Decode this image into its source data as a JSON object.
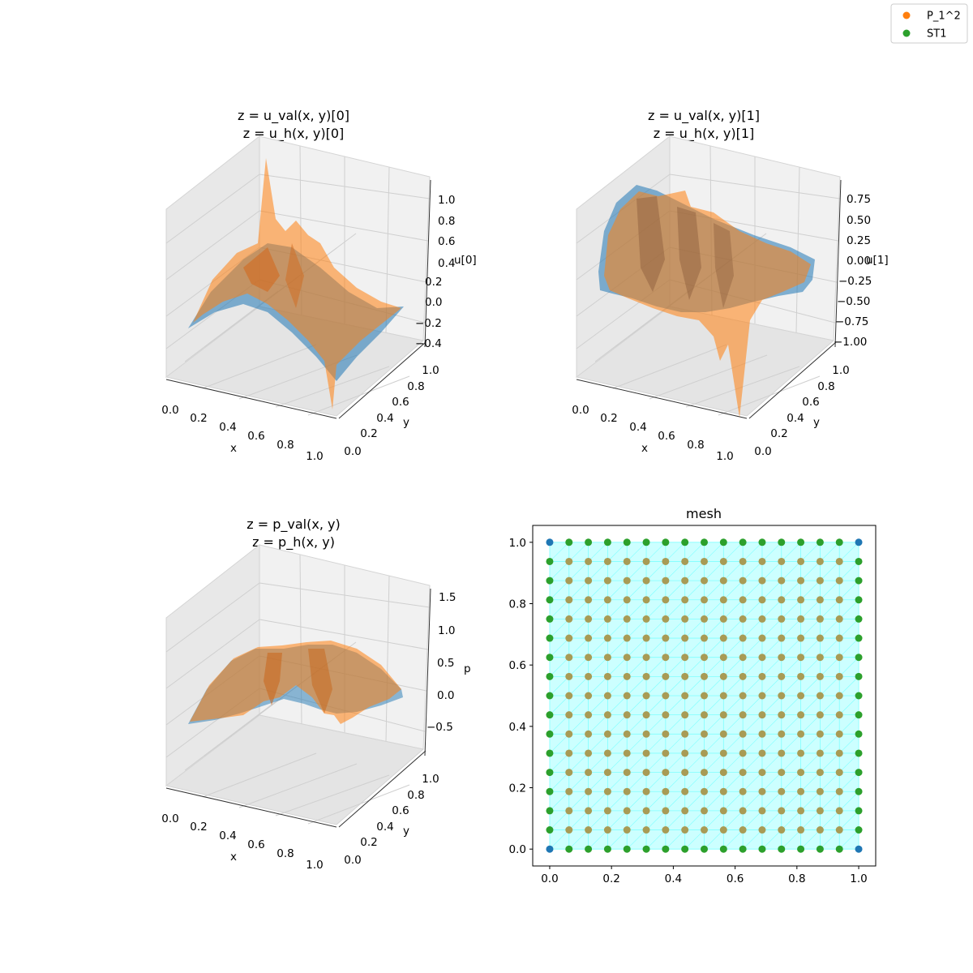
{
  "legend": {
    "placement": "top-right",
    "entries": [
      {
        "label": "P_1^2",
        "color": "#ff7f0e"
      },
      {
        "label": "ST1",
        "color": "#2ca02c"
      }
    ]
  },
  "colors": {
    "exact_surface": "#1f77b4",
    "discrete_surface": "#ff7f0e",
    "mesh_fill": "#ccffff",
    "mesh_lines": "#7fffff",
    "vertex_points": "#1f77b4",
    "p1_points": "#ff7f0e",
    "st1_points": "#2ca02c"
  },
  "chart_data": [
    {
      "type": "surface3d",
      "title_lines": [
        "z = u_val(x, y)[0]",
        "z = u_h(x, y)[0]"
      ],
      "xlabel": "x",
      "ylabel": "y",
      "zlabel": "u[0]",
      "x_ticks": [
        "0.0",
        "0.2",
        "0.4",
        "0.6",
        "0.8",
        "1.0"
      ],
      "y_ticks": [
        "0.0",
        "0.2",
        "0.4",
        "0.6",
        "0.8",
        "1.0"
      ],
      "z_ticks": [
        "−0.4",
        "−0.2",
        "0.0",
        "0.2",
        "0.4",
        "0.6",
        "0.8",
        "1.0"
      ],
      "xlim": [
        0,
        1
      ],
      "ylim": [
        0,
        1
      ],
      "zlim": [
        -0.45,
        1.1
      ],
      "grid": true
    },
    {
      "type": "surface3d",
      "title_lines": [
        "z = u_val(x, y)[1]",
        "z = u_h(x, y)[1]"
      ],
      "xlabel": "x",
      "ylabel": "y",
      "zlabel": "u[1]",
      "x_ticks": [
        "0.0",
        "0.2",
        "0.4",
        "0.6",
        "0.8",
        "1.0"
      ],
      "y_ticks": [
        "0.0",
        "0.2",
        "0.4",
        "0.6",
        "0.8",
        "1.0"
      ],
      "z_ticks": [
        "−1.00",
        "−0.75",
        "−0.50",
        "−0.25",
        "0.00",
        "0.25",
        "0.50",
        "0.75"
      ],
      "xlim": [
        0,
        1
      ],
      "ylim": [
        0,
        1
      ],
      "zlim": [
        -1.05,
        0.85
      ],
      "grid": true
    },
    {
      "type": "surface3d",
      "title_lines": [
        "z = p_val(x, y)",
        "z = p_h(x, y)"
      ],
      "xlabel": "x",
      "ylabel": "y",
      "zlabel": "p",
      "x_ticks": [
        "0.0",
        "0.2",
        "0.4",
        "0.6",
        "0.8",
        "1.0"
      ],
      "y_ticks": [
        "0.0",
        "0.2",
        "0.4",
        "0.6",
        "0.8",
        "1.0"
      ],
      "z_ticks": [
        "−0.5",
        "0.0",
        "0.5",
        "1.0",
        "1.5"
      ],
      "xlim": [
        0,
        1
      ],
      "ylim": [
        0,
        1
      ],
      "zlim": [
        -0.8,
        1.55
      ],
      "grid": true
    },
    {
      "type": "scatter",
      "title": "mesh",
      "x_ticks": [
        "0.0",
        "0.2",
        "0.4",
        "0.6",
        "0.8",
        "1.0"
      ],
      "y_ticks": [
        "0.0",
        "0.2",
        "0.4",
        "0.6",
        "0.8",
        "1.0"
      ],
      "xlim": [
        -0.055,
        1.055
      ],
      "ylim": [
        -0.055,
        1.055
      ],
      "grid": false,
      "mesh_divisions": 16,
      "series": [
        {
          "name": "P_1^2",
          "color": "#ff7f0e",
          "points": "all interior grid nodes (j/16, k/16)"
        },
        {
          "name": "ST1",
          "color": "#2ca02c",
          "points": "edge nodes of the 16x16 grid"
        }
      ]
    }
  ]
}
